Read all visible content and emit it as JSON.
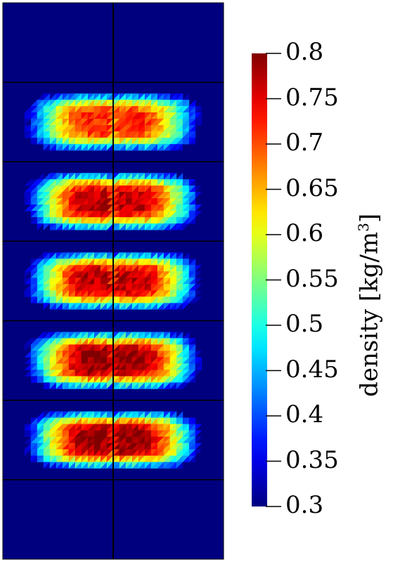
{
  "chart_data": {
    "type": "heatmap",
    "colormap": "jet",
    "background_color": "#00007f",
    "mesh_line_color": "#000000",
    "colorbar": {
      "min": 0.3,
      "max": 0.8,
      "ticks": [
        "0.8",
        "0.75",
        "0.7",
        "0.65",
        "0.6",
        "0.55",
        "0.5",
        "0.45",
        "0.4",
        "0.35",
        "0.3"
      ],
      "title_main": "density [kg/m",
      "title_sup": "3",
      "title_close": "]"
    },
    "domain_rows": 7,
    "domain_cols": 2,
    "blobs": [
      {
        "row": 1,
        "peak_density": 0.72
      },
      {
        "row": 2,
        "peak_density": 0.77
      },
      {
        "row": 3,
        "peak_density": 0.77
      },
      {
        "row": 4,
        "peak_density": 0.79
      },
      {
        "row": 5,
        "peak_density": 0.79
      }
    ]
  }
}
